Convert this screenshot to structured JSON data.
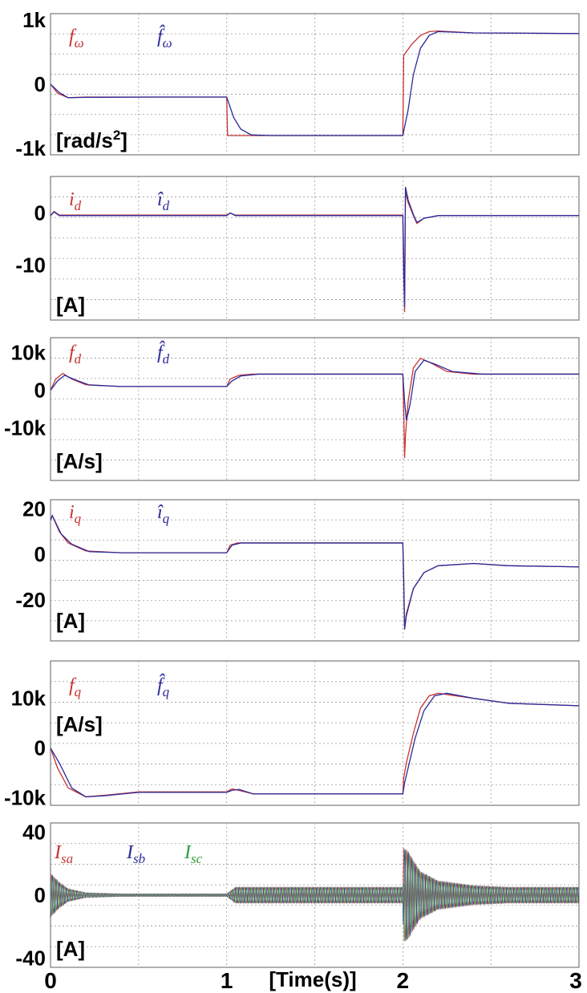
{
  "colors": {
    "red": "#c83232",
    "blue": "#2b2b9c",
    "green": "#2f9e3a",
    "black": "#111111",
    "grid": "#9a9a9a",
    "frame": "#7a7a7a"
  },
  "x_axis": {
    "label": "[Time(s)]",
    "ticks": [
      "0",
      "1",
      "2",
      "3"
    ],
    "range": [
      0,
      3
    ]
  },
  "chart_data": [
    {
      "type": "line",
      "unit": "[rad/s2]",
      "ylim": [
        -1100,
        1100
      ],
      "yticks": [
        {
          "v": 1000,
          "t": "1k"
        },
        {
          "v": 0,
          "t": "0"
        },
        {
          "v": -1000,
          "t": "-1k"
        }
      ],
      "series": [
        {
          "name": "f_ω",
          "color": "red",
          "points": [
            [
              0,
              0
            ],
            [
              0.04,
              -140
            ],
            [
              0.1,
              -210
            ],
            [
              0.2,
              -200
            ],
            [
              0.6,
              -200
            ],
            [
              1.0,
              -200
            ],
            [
              1.005,
              -800
            ],
            [
              1.5,
              -800
            ],
            [
              2.0,
              -800
            ],
            [
              2.005,
              450
            ],
            [
              2.05,
              620
            ],
            [
              2.1,
              760
            ],
            [
              2.15,
              820
            ],
            [
              2.2,
              830
            ],
            [
              2.4,
              800
            ],
            [
              3.0,
              790
            ]
          ]
        },
        {
          "name": "f̂_ω",
          "color": "blue",
          "points": [
            [
              0,
              0
            ],
            [
              0.05,
              -130
            ],
            [
              0.1,
              -210
            ],
            [
              0.2,
              -205
            ],
            [
              0.6,
              -200
            ],
            [
              1.0,
              -200
            ],
            [
              1.04,
              -520
            ],
            [
              1.08,
              -700
            ],
            [
              1.14,
              -790
            ],
            [
              1.25,
              -800
            ],
            [
              2.0,
              -800
            ],
            [
              2.03,
              -400
            ],
            [
              2.06,
              150
            ],
            [
              2.1,
              560
            ],
            [
              2.15,
              760
            ],
            [
              2.2,
              820
            ],
            [
              2.4,
              800
            ],
            [
              3.0,
              790
            ]
          ]
        }
      ]
    },
    {
      "type": "line",
      "unit": "[A]",
      "ylim": [
        -20.5,
        7
      ],
      "yticks": [
        {
          "v": 0,
          "t": "0"
        },
        {
          "v": -10,
          "t": "-10"
        }
      ],
      "series": [
        {
          "name": "i_d",
          "color": "red",
          "points": [
            [
              0,
              -0.5
            ],
            [
              0.02,
              0.3
            ],
            [
              0.05,
              -0.4
            ],
            [
              1.0,
              -0.4
            ],
            [
              1.02,
              0
            ],
            [
              1.05,
              -0.4
            ],
            [
              2.0,
              -0.4
            ],
            [
              2.005,
              -8
            ],
            [
              2.01,
              -19
            ],
            [
              2.015,
              4
            ],
            [
              2.03,
              2
            ],
            [
              2.06,
              -0.5
            ],
            [
              2.08,
              -2
            ],
            [
              2.12,
              -1
            ],
            [
              2.2,
              -0.5
            ],
            [
              3.0,
              -0.5
            ]
          ]
        },
        {
          "name": "î_d",
          "color": "blue",
          "points": [
            [
              0,
              -0.5
            ],
            [
              0.02,
              0.2
            ],
            [
              0.05,
              -0.5
            ],
            [
              1.0,
              -0.5
            ],
            [
              1.02,
              0
            ],
            [
              1.05,
              -0.5
            ],
            [
              2.0,
              -0.5
            ],
            [
              2.005,
              -12
            ],
            [
              2.01,
              -18
            ],
            [
              2.015,
              5
            ],
            [
              2.03,
              2.5
            ],
            [
              2.06,
              -0.3
            ],
            [
              2.08,
              -1.8
            ],
            [
              2.12,
              -1
            ],
            [
              2.2,
              -0.5
            ],
            [
              3.0,
              -0.5
            ]
          ]
        }
      ]
    },
    {
      "type": "line",
      "unit": "[A/s]",
      "ylim": [
        -24000,
        14000
      ],
      "yticks": [
        {
          "v": 10000,
          "t": "10k"
        },
        {
          "v": 0,
          "t": "0"
        },
        {
          "v": -10000,
          "t": "-10k"
        }
      ],
      "series": [
        {
          "name": "f_d",
          "color": "red",
          "points": [
            [
              0,
              0
            ],
            [
              0.03,
              3000
            ],
            [
              0.07,
              4500
            ],
            [
              0.12,
              3000
            ],
            [
              0.2,
              1500
            ],
            [
              0.4,
              1000
            ],
            [
              1.0,
              1000
            ],
            [
              1.02,
              3000
            ],
            [
              1.07,
              4000
            ],
            [
              1.15,
              4300
            ],
            [
              2.0,
              4300
            ],
            [
              2.005,
              -5000
            ],
            [
              2.01,
              -18000
            ],
            [
              2.015,
              -12000
            ],
            [
              2.03,
              -3000
            ],
            [
              2.06,
              6000
            ],
            [
              2.1,
              8500
            ],
            [
              2.15,
              7500
            ],
            [
              2.25,
              5000
            ],
            [
              2.4,
              4300
            ],
            [
              3.0,
              4300
            ]
          ]
        },
        {
          "name": "f̂_d",
          "color": "blue",
          "points": [
            [
              0,
              0
            ],
            [
              0.04,
              2500
            ],
            [
              0.08,
              4000
            ],
            [
              0.14,
              2800
            ],
            [
              0.22,
              1400
            ],
            [
              0.4,
              1000
            ],
            [
              1.0,
              1000
            ],
            [
              1.03,
              2500
            ],
            [
              1.08,
              3800
            ],
            [
              1.18,
              4300
            ],
            [
              2.0,
              4300
            ],
            [
              2.01,
              -3000
            ],
            [
              2.02,
              -8000
            ],
            [
              2.04,
              -4000
            ],
            [
              2.07,
              5000
            ],
            [
              2.12,
              8000
            ],
            [
              2.18,
              7000
            ],
            [
              2.28,
              5000
            ],
            [
              2.45,
              4300
            ],
            [
              3.0,
              4300
            ]
          ]
        }
      ]
    },
    {
      "type": "line",
      "unit": "[A]",
      "ylim": [
        -38,
        24
      ],
      "yticks": [
        {
          "v": 20,
          "t": "20"
        },
        {
          "v": 0,
          "t": "0"
        },
        {
          "v": -20,
          "t": "-20"
        }
      ],
      "series": [
        {
          "name": "i_q",
          "color": "red",
          "points": [
            [
              0,
              15
            ],
            [
              0.01,
              17
            ],
            [
              0.05,
              10
            ],
            [
              0.1,
              5
            ],
            [
              0.2,
              1.5
            ],
            [
              0.4,
              0.7
            ],
            [
              1.0,
              0.7
            ],
            [
              1.02,
              4
            ],
            [
              1.06,
              5
            ],
            [
              1.2,
              5
            ],
            [
              2.0,
              5
            ],
            [
              2.005,
              -10
            ],
            [
              2.01,
              -32
            ],
            [
              2.02,
              -26
            ],
            [
              2.06,
              -15
            ],
            [
              2.12,
              -8
            ],
            [
              2.2,
              -5
            ],
            [
              2.4,
              -4
            ],
            [
              2.6,
              -5
            ],
            [
              3.0,
              -5.5
            ]
          ]
        },
        {
          "name": "î_q",
          "color": "blue",
          "points": [
            [
              0,
              15
            ],
            [
              0.01,
              17
            ],
            [
              0.06,
              9
            ],
            [
              0.12,
              4.5
            ],
            [
              0.22,
              1.2
            ],
            [
              0.4,
              0.7
            ],
            [
              1.0,
              0.7
            ],
            [
              1.03,
              4
            ],
            [
              1.08,
              5
            ],
            [
              1.2,
              5
            ],
            [
              2.0,
              5
            ],
            [
              2.005,
              -12
            ],
            [
              2.01,
              -33
            ],
            [
              2.02,
              -27
            ],
            [
              2.06,
              -15
            ],
            [
              2.12,
              -8
            ],
            [
              2.2,
              -5
            ],
            [
              2.4,
              -4
            ],
            [
              2.6,
              -5
            ],
            [
              3.0,
              -5.5
            ]
          ]
        }
      ]
    },
    {
      "type": "line",
      "unit": "[A/s]",
      "ylim": [
        -11500,
        17500
      ],
      "yticks": [
        {
          "v": 10000,
          "t": "10k"
        },
        {
          "v": 0,
          "t": "0"
        },
        {
          "v": -10000,
          "t": "-10k"
        }
      ],
      "series": [
        {
          "name": "f_q",
          "color": "red",
          "points": [
            [
              0,
              0
            ],
            [
              0.04,
              -4000
            ],
            [
              0.1,
              -8000
            ],
            [
              0.2,
              -9800
            ],
            [
              0.3,
              -9500
            ],
            [
              0.5,
              -8800
            ],
            [
              1.0,
              -8800
            ],
            [
              1.03,
              -8200
            ],
            [
              1.07,
              -8500
            ],
            [
              1.15,
              -9200
            ],
            [
              2.0,
              -9200
            ],
            [
              2.005,
              -6000
            ],
            [
              2.02,
              -3000
            ],
            [
              2.06,
              3000
            ],
            [
              2.1,
              8000
            ],
            [
              2.15,
              10500
            ],
            [
              2.2,
              11000
            ],
            [
              2.4,
              10000
            ],
            [
              2.6,
              9000
            ],
            [
              3.0,
              8500
            ]
          ]
        },
        {
          "name": "f̂_q",
          "color": "blue",
          "points": [
            [
              0,
              0
            ],
            [
              0.05,
              -3000
            ],
            [
              0.12,
              -8000
            ],
            [
              0.2,
              -9800
            ],
            [
              0.3,
              -9600
            ],
            [
              0.5,
              -8900
            ],
            [
              1.0,
              -8900
            ],
            [
              1.03,
              -8500
            ],
            [
              1.07,
              -8300
            ],
            [
              1.15,
              -9200
            ],
            [
              2.0,
              -9200
            ],
            [
              2.01,
              -7000
            ],
            [
              2.03,
              -4000
            ],
            [
              2.07,
              2000
            ],
            [
              2.12,
              7500
            ],
            [
              2.18,
              10500
            ],
            [
              2.25,
              11000
            ],
            [
              2.4,
              10000
            ],
            [
              2.6,
              9000
            ],
            [
              3.0,
              8500
            ]
          ]
        }
      ]
    },
    {
      "type": "line",
      "unit": "[A]",
      "ylim": [
        -46,
        46
      ],
      "yticks": [
        {
          "v": 40,
          "t": "40"
        },
        {
          "v": 0,
          "t": "0"
        },
        {
          "v": -40,
          "t": "-40"
        }
      ],
      "series": [
        {
          "name": "I_sa",
          "color": "red"
        },
        {
          "name": "I_sb",
          "color": "blue"
        },
        {
          "name": "I_sc",
          "color": "green"
        }
      ],
      "oscillation": {
        "frequency_hz": 50,
        "phases_deg": [
          0,
          -120,
          120
        ],
        "envelope": [
          [
            0,
            14
          ],
          [
            0.05,
            8
          ],
          [
            0.1,
            4
          ],
          [
            0.2,
            1.5
          ],
          [
            0.4,
            0.8
          ],
          [
            1.0,
            0.8
          ],
          [
            1.05,
            5
          ],
          [
            1.2,
            5
          ],
          [
            2.0,
            5
          ],
          [
            2.005,
            30
          ],
          [
            2.03,
            28
          ],
          [
            2.06,
            22
          ],
          [
            2.1,
            15
          ],
          [
            2.2,
            9
          ],
          [
            2.4,
            6
          ],
          [
            2.6,
            5
          ],
          [
            3.0,
            5
          ]
        ]
      }
    }
  ]
}
